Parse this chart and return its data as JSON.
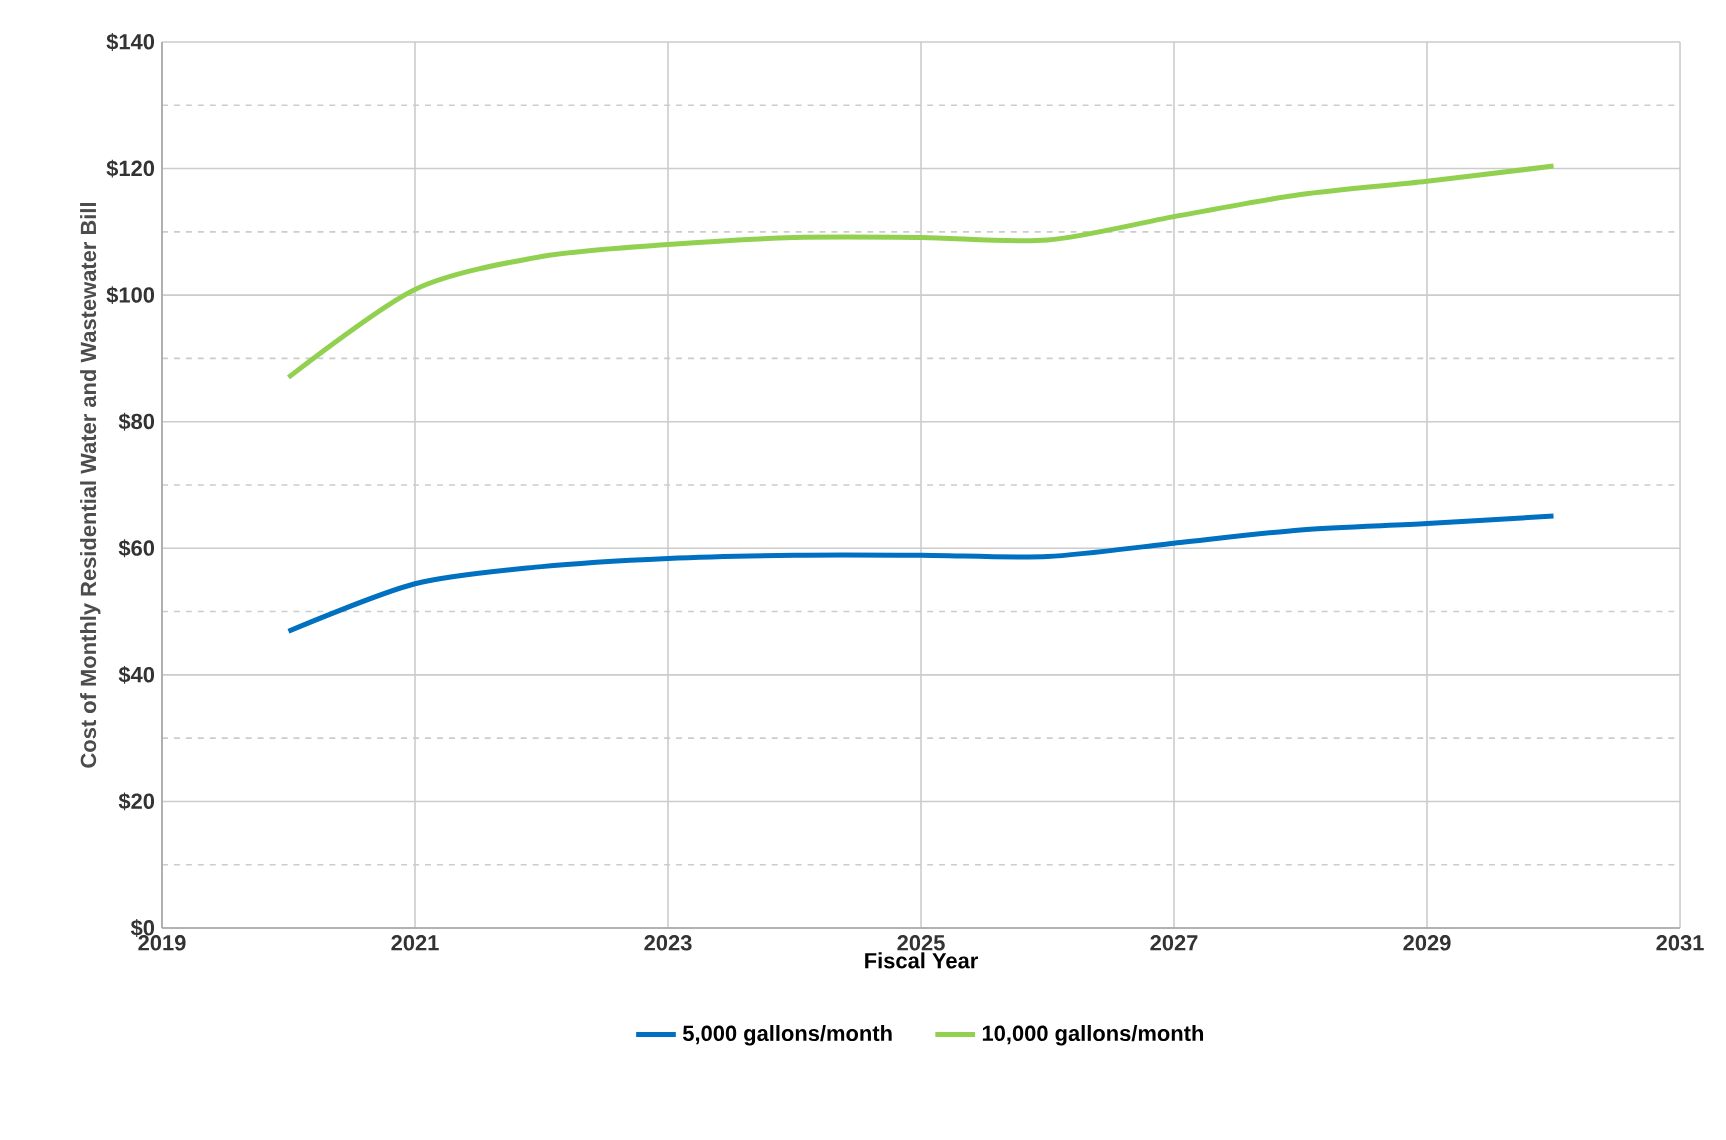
{
  "chart_data": {
    "type": "line",
    "xlabel": "Fiscal Year",
    "ylabel": "Cost of Monthly Residential Water and Wastewater Bill",
    "x": [
      2020,
      2021,
      2022,
      2023,
      2024,
      2025,
      2026,
      2027,
      2028,
      2029,
      2030
    ],
    "series": [
      {
        "name": "5,000 gallons/month",
        "color": "#0070c0",
        "values": [
          46.9,
          54.4,
          57.1,
          58.4,
          58.9,
          58.9,
          58.7,
          60.8,
          62.9,
          63.9,
          65.1
        ]
      },
      {
        "name": "10,000 gallons/month",
        "color": "#92d050",
        "values": [
          87.0,
          100.9,
          106.1,
          108.0,
          109.1,
          109.1,
          108.7,
          112.4,
          115.9,
          118.0,
          120.4
        ]
      }
    ],
    "xlim": [
      2019,
      2031
    ],
    "xticks": [
      2019,
      2021,
      2023,
      2025,
      2027,
      2029,
      2031
    ],
    "ylim": [
      0,
      140
    ],
    "yticks": [
      {
        "value": 0,
        "label": "$0"
      },
      {
        "value": 10,
        "label": null
      },
      {
        "value": 20,
        "label": "$20"
      },
      {
        "value": 30,
        "label": null
      },
      {
        "value": 40,
        "label": "$40"
      },
      {
        "value": 50,
        "label": null
      },
      {
        "value": 60,
        "label": "$60"
      },
      {
        "value": 70,
        "label": null
      },
      {
        "value": 80,
        "label": "$80"
      },
      {
        "value": 90,
        "label": null
      },
      {
        "value": 100,
        "label": "$100"
      },
      {
        "value": 110,
        "label": null
      },
      {
        "value": 120,
        "label": "$120"
      },
      {
        "value": 130,
        "label": null
      },
      {
        "value": 140,
        "label": "$140"
      }
    ],
    "grid": true,
    "legend": "bottom",
    "marker": "none",
    "line_style": "solid"
  }
}
